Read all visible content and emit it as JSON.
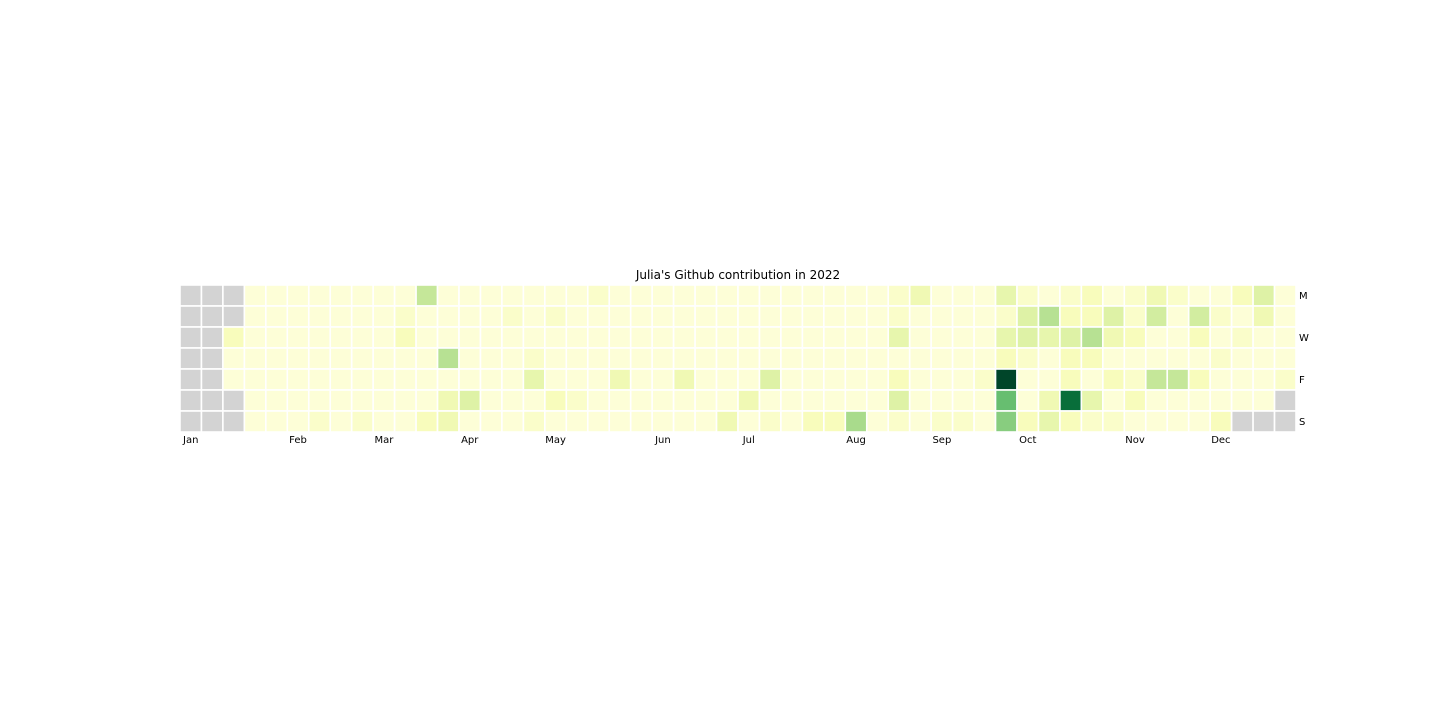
{
  "chart_data": {
    "type": "heatmap",
    "title": "Julia's Github contribution in 2022",
    "year": 2022,
    "x_tick_labels": [
      "Jan",
      "Feb",
      "Mar",
      "Apr",
      "May",
      "Jun",
      "Jul",
      "Aug",
      "Sep",
      "Oct",
      "Nov",
      "Dec"
    ],
    "y_tick_labels": [
      "M",
      "",
      "W",
      "",
      "F",
      "",
      "S"
    ],
    "colormap": "YlGn",
    "empty_cell_color": "#d3d3d3",
    "cell_border_color": "#ffffff",
    "value_range": [
      0,
      26
    ],
    "days_outside_year_shown_gray": true,
    "values": [
      [
        null,
        null,
        null,
        1,
        1,
        1,
        1,
        1,
        1,
        1,
        1,
        8,
        1,
        1,
        1,
        1,
        1,
        1,
        1,
        2,
        1,
        1,
        1,
        1,
        1,
        1,
        1,
        1,
        1,
        1,
        1,
        1,
        1,
        2,
        4,
        1,
        1,
        1,
        5,
        2,
        1,
        2,
        3,
        1,
        2,
        4,
        2,
        1,
        1,
        3,
        6,
        1
      ],
      [
        null,
        null,
        null,
        1,
        1,
        1,
        1,
        1,
        1,
        1,
        2,
        1,
        1,
        1,
        1,
        2,
        1,
        2,
        1,
        1,
        1,
        1,
        1,
        1,
        1,
        1,
        1,
        1,
        1,
        1,
        1,
        1,
        1,
        2,
        1,
        1,
        1,
        1,
        2,
        6,
        9,
        3,
        3,
        6,
        2,
        7,
        1,
        7,
        2,
        1,
        4,
        1
      ],
      [
        null,
        null,
        3,
        1,
        1,
        1,
        1,
        1,
        1,
        1,
        3,
        1,
        1,
        1,
        1,
        1,
        1,
        1,
        1,
        1,
        1,
        1,
        1,
        1,
        1,
        1,
        1,
        1,
        1,
        1,
        1,
        1,
        1,
        5,
        1,
        1,
        1,
        1,
        5,
        6,
        5,
        6,
        9,
        4,
        3,
        1,
        1,
        3,
        1,
        2,
        1,
        1
      ],
      [
        null,
        null,
        1,
        1,
        1,
        1,
        1,
        1,
        1,
        1,
        1,
        1,
        9,
        1,
        1,
        1,
        2,
        1,
        1,
        1,
        1,
        1,
        1,
        1,
        1,
        1,
        1,
        1,
        1,
        1,
        1,
        1,
        1,
        1,
        1,
        1,
        1,
        1,
        3,
        2,
        1,
        3,
        3,
        1,
        1,
        1,
        1,
        1,
        2,
        1,
        1,
        1
      ],
      [
        null,
        null,
        1,
        1,
        1,
        1,
        1,
        1,
        1,
        1,
        1,
        1,
        1,
        1,
        1,
        1,
        5,
        1,
        1,
        1,
        4,
        1,
        1,
        4,
        1,
        1,
        1,
        6,
        1,
        1,
        1,
        1,
        1,
        3,
        1,
        1,
        1,
        2,
        26,
        1,
        1,
        3,
        1,
        3,
        2,
        8,
        8,
        3,
        1,
        1,
        1,
        2
      ],
      [
        null,
        null,
        null,
        1,
        1,
        1,
        1,
        1,
        1,
        1,
        1,
        1,
        4,
        6,
        1,
        1,
        1,
        3,
        2,
        1,
        1,
        1,
        1,
        1,
        1,
        1,
        4,
        1,
        1,
        1,
        1,
        1,
        1,
        6,
        1,
        1,
        1,
        1,
        14,
        1,
        4,
        22,
        5,
        1,
        3,
        1,
        1,
        1,
        1,
        1,
        1,
        null
      ],
      [
        null,
        null,
        null,
        1,
        1,
        1,
        2,
        1,
        2,
        1,
        1,
        3,
        4,
        1,
        1,
        1,
        2,
        1,
        1,
        1,
        1,
        1,
        1,
        1,
        1,
        4,
        1,
        2,
        1,
        3,
        3,
        10,
        1,
        2,
        1,
        2,
        2,
        1,
        12,
        3,
        5,
        3,
        2,
        2,
        1,
        1,
        1,
        1,
        3,
        null,
        null,
        null
      ]
    ]
  }
}
